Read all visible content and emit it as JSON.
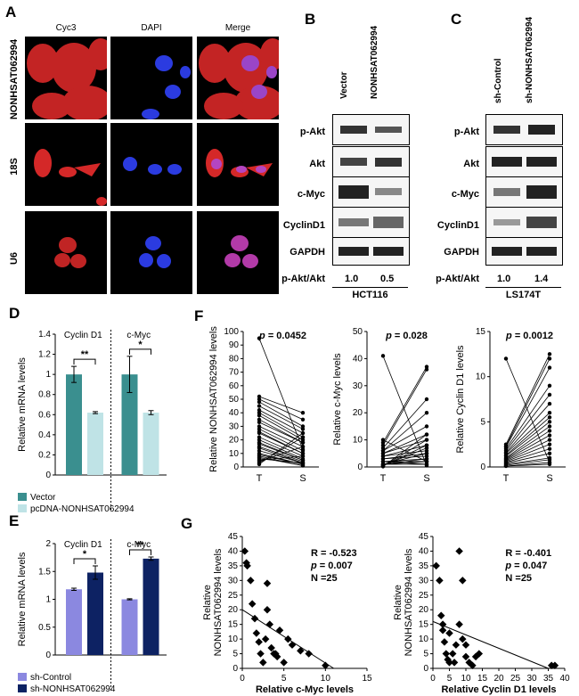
{
  "panels": {
    "A": "A",
    "B": "B",
    "C": "C",
    "D": "D",
    "E": "E",
    "F": "F",
    "G": "G"
  },
  "panelA": {
    "columns": [
      "Cyc3",
      "DAPI",
      "Merge"
    ],
    "rows": [
      "NONHSAT062994",
      "18S",
      "U6"
    ]
  },
  "panelB": {
    "lanes": [
      "Vector",
      "NONHSAT062994"
    ],
    "blots": [
      "p-Akt",
      "Akt",
      "c-Myc",
      "CyclinD1",
      "GAPDH"
    ],
    "ratio_label": "p-Akt/Akt",
    "ratios": [
      "1.0",
      "0.5"
    ],
    "cell_line": "HCT116"
  },
  "panelC": {
    "lanes": [
      "sh-Control",
      "sh-NONHSAT062994"
    ],
    "blots": [
      "p-Akt",
      "Akt",
      "c-Myc",
      "CyclinD1",
      "GAPDH"
    ],
    "ratio_label": "p-Akt/Akt",
    "ratios": [
      "1.0",
      "1.4"
    ],
    "cell_line": "LS174T"
  },
  "colors": {
    "teal": "#3a8f8f",
    "light_teal": "#bfe3e6",
    "lavender": "#8b88e0",
    "navy": "#0d2263",
    "cell_red": "#d42828",
    "nucleus_blue": "#2b3be0"
  },
  "chart_data": [
    {
      "id": "D",
      "type": "bar",
      "ylabel": "Relative mRNA levels",
      "ylim": [
        0,
        1.4
      ],
      "yticks": [
        "0",
        "0.2",
        "0.4",
        "0.6",
        "0.8",
        "1",
        "1.2",
        "1.4"
      ],
      "groups": [
        "Cyclin D1",
        "c-Myc"
      ],
      "series": [
        {
          "name": "Vector",
          "values": [
            1.0,
            1.0
          ],
          "errors": [
            0.08,
            0.18
          ]
        },
        {
          "name": "pcDNA-NONHSAT062994",
          "values": [
            0.62,
            0.62
          ],
          "errors": [
            0.01,
            0.02
          ]
        }
      ],
      "significance": [
        "**",
        "*"
      ]
    },
    {
      "id": "E",
      "type": "bar",
      "ylabel": "Relative mRNA levels",
      "ylim": [
        0,
        2
      ],
      "yticks": [
        "0",
        "0.5",
        "1",
        "1.5",
        "2"
      ],
      "groups": [
        "Cyclin D1",
        "c-Myc"
      ],
      "series": [
        {
          "name": "sh-Control",
          "values": [
            1.18,
            1.0
          ],
          "errors": [
            0.02,
            0.01
          ]
        },
        {
          "name": "sh-NONHSAT062994",
          "values": [
            1.48,
            1.73
          ],
          "errors": [
            0.12,
            0.03
          ]
        }
      ],
      "significance": [
        "*",
        "**"
      ]
    },
    {
      "id": "F1",
      "type": "line",
      "ylabel": "Relative NONHSAT062994 levels",
      "categories": [
        "T",
        "S"
      ],
      "ylim": [
        0,
        100
      ],
      "yticks": [
        "0",
        "10",
        "20",
        "30",
        "40",
        "50",
        "60",
        "70",
        "80",
        "90",
        "100"
      ],
      "annotation_p": "p",
      "annotation_val": "= 0.0452",
      "pairs": [
        [
          95,
          13
        ],
        [
          52,
          40
        ],
        [
          50,
          35
        ],
        [
          48,
          30
        ],
        [
          45,
          28
        ],
        [
          42,
          25
        ],
        [
          40,
          22
        ],
        [
          38,
          20
        ],
        [
          35,
          18
        ],
        [
          33,
          18
        ],
        [
          30,
          15
        ],
        [
          28,
          12
        ],
        [
          26,
          10
        ],
        [
          25,
          10
        ],
        [
          22,
          8
        ],
        [
          20,
          6
        ],
        [
          18,
          5
        ],
        [
          17,
          5
        ],
        [
          15,
          4
        ],
        [
          14,
          3
        ],
        [
          12,
          3
        ],
        [
          10,
          2
        ],
        [
          9,
          2
        ],
        [
          8,
          1
        ],
        [
          7,
          1
        ],
        [
          6,
          3
        ],
        [
          5,
          8
        ],
        [
          4,
          15
        ],
        [
          3,
          22
        ],
        [
          2,
          25
        ]
      ]
    },
    {
      "id": "F2",
      "type": "line",
      "ylabel": "Relative c-Myc levels",
      "categories": [
        "T",
        "S"
      ],
      "ylim": [
        0,
        50
      ],
      "yticks": [
        "0",
        "10",
        "20",
        "30",
        "40",
        "50"
      ],
      "annotation_p": "p",
      "annotation_val": "= 0.028",
      "pairs": [
        [
          41,
          0.5
        ],
        [
          10,
          2
        ],
        [
          9,
          37
        ],
        [
          8,
          36
        ],
        [
          7,
          25
        ],
        [
          6,
          20
        ],
        [
          6,
          15
        ],
        [
          5,
          12
        ],
        [
          5,
          10
        ],
        [
          4,
          8
        ],
        [
          4,
          6
        ],
        [
          3,
          5
        ],
        [
          3,
          4
        ],
        [
          2,
          3
        ],
        [
          2,
          2
        ],
        [
          2,
          1
        ],
        [
          1,
          1
        ],
        [
          1,
          2
        ],
        [
          1,
          3
        ],
        [
          1,
          5
        ],
        [
          0.5,
          7
        ],
        [
          0.5,
          8
        ],
        [
          0.3,
          10
        ],
        [
          0.2,
          12
        ]
      ]
    },
    {
      "id": "F3",
      "type": "line",
      "ylabel": "Relative Cyclin D1 levels",
      "categories": [
        "T",
        "S"
      ],
      "ylim": [
        0,
        15
      ],
      "yticks": [
        "0",
        "5",
        "10",
        "15"
      ],
      "annotation_p": "p",
      "annotation_val": "= 0.0012",
      "pairs": [
        [
          12,
          0.5
        ],
        [
          2.5,
          12.5
        ],
        [
          2.3,
          12
        ],
        [
          2.2,
          11
        ],
        [
          2,
          9
        ],
        [
          1.8,
          8
        ],
        [
          1.6,
          7
        ],
        [
          1.5,
          6
        ],
        [
          1.3,
          5.5
        ],
        [
          1.2,
          5
        ],
        [
          1,
          4.5
        ],
        [
          0.9,
          4
        ],
        [
          0.8,
          3.5
        ],
        [
          0.7,
          3
        ],
        [
          0.6,
          2.5
        ],
        [
          0.5,
          2
        ],
        [
          0.4,
          1.5
        ],
        [
          0.3,
          1
        ],
        [
          0.2,
          0.8
        ],
        [
          0.1,
          0.5
        ],
        [
          0.1,
          0.3
        ]
      ]
    },
    {
      "id": "G1",
      "type": "scatter",
      "ylabel": "Relative NONHSAT062994 levels",
      "xlabel": "Relative c-Myc levels",
      "xlim": [
        0,
        15
      ],
      "ylim": [
        0,
        45
      ],
      "xticks": [
        "0",
        "5",
        "10",
        "15"
      ],
      "yticks": [
        "0",
        "5",
        "10",
        "15",
        "20",
        "25",
        "30",
        "35",
        "40",
        "45"
      ],
      "stats": [
        "R = -0.523",
        "= 0.007",
        "N =25"
      ],
      "stat_p": "p",
      "trend": [
        [
          0,
          20
        ],
        [
          11,
          0
        ]
      ],
      "points": [
        [
          0.3,
          40
        ],
        [
          0.5,
          36
        ],
        [
          0.6,
          35
        ],
        [
          1,
          30
        ],
        [
          1.2,
          22
        ],
        [
          1.5,
          17
        ],
        [
          1.7,
          12
        ],
        [
          2,
          9
        ],
        [
          2.2,
          5
        ],
        [
          2.5,
          2
        ],
        [
          2.8,
          10
        ],
        [
          3,
          29
        ],
        [
          3,
          20
        ],
        [
          3.3,
          15
        ],
        [
          3.5,
          7
        ],
        [
          3.8,
          5
        ],
        [
          4,
          5
        ],
        [
          4.2,
          4
        ],
        [
          4.5,
          13
        ],
        [
          5,
          2
        ],
        [
          5.5,
          10
        ],
        [
          6,
          8
        ],
        [
          7,
          6
        ],
        [
          8,
          5
        ],
        [
          10,
          1
        ]
      ]
    },
    {
      "id": "G2",
      "type": "scatter",
      "ylabel": "Relative NONHSAT062994 levels",
      "xlabel": "Relative Cyclin D1 levels",
      "xlim": [
        0,
        40
      ],
      "ylim": [
        0,
        45
      ],
      "xticks": [
        "0",
        "5",
        "10",
        "15",
        "20",
        "25",
        "30",
        "35",
        "40"
      ],
      "yticks": [
        "0",
        "5",
        "10",
        "15",
        "20",
        "25",
        "30",
        "35",
        "40",
        "45"
      ],
      "stats": [
        "R = -0.401",
        "= 0.047",
        "N =25"
      ],
      "stat_p": "p",
      "trend": [
        [
          0,
          16
        ],
        [
          35,
          0
        ]
      ],
      "points": [
        [
          1,
          35
        ],
        [
          2,
          30
        ],
        [
          2.5,
          18
        ],
        [
          3,
          15
        ],
        [
          3,
          13
        ],
        [
          3.5,
          9
        ],
        [
          4,
          5
        ],
        [
          4.5,
          3
        ],
        [
          5,
          2
        ],
        [
          5,
          12
        ],
        [
          6,
          5
        ],
        [
          6.5,
          2
        ],
        [
          7,
          8
        ],
        [
          8,
          40
        ],
        [
          8,
          15
        ],
        [
          9,
          30
        ],
        [
          9,
          10
        ],
        [
          10,
          8
        ],
        [
          10,
          4
        ],
        [
          11,
          2
        ],
        [
          12,
          1
        ],
        [
          13,
          4
        ],
        [
          14,
          5
        ],
        [
          36,
          1
        ],
        [
          37,
          1
        ]
      ]
    }
  ]
}
